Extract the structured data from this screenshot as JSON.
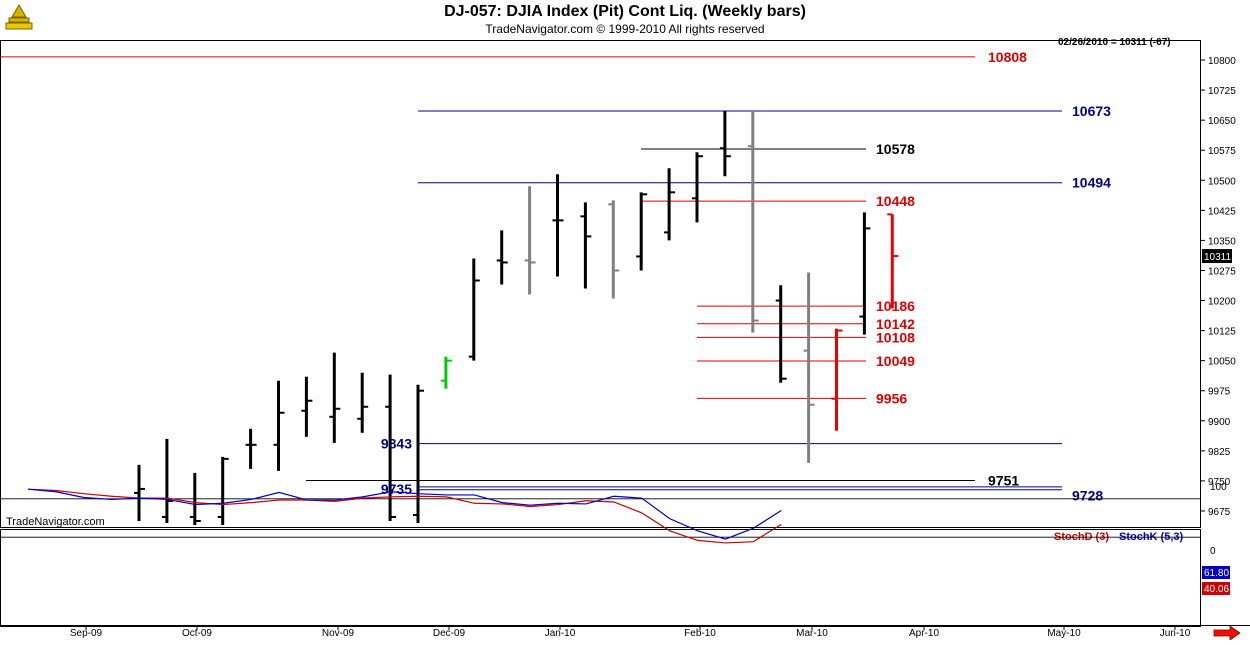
{
  "header": {
    "title": "DJ-057:  DJIA Index (Pit) Cont Liq.  (Weekly bars)",
    "subtitle": "TradeNavigator.com © 1999-2010 All rights reserved",
    "readout": "02/26/2010 = 10311 (-67)"
  },
  "watermark": "TradeNavigator.com",
  "indicator_legend": [
    {
      "text": "StochD (3)",
      "color": "#cc0000"
    },
    {
      "text": "StochK (5,3)",
      "color": "#0000cc"
    }
  ],
  "colors": {
    "up_bar": "#000000",
    "down_bar": "#808080",
    "signal_bar": "#00cc00",
    "red_level": "#dd0000",
    "blue_level": "#00008b",
    "black_level": "#000000",
    "stoch_d": "#cc0000",
    "stoch_k": "#0000cc"
  },
  "chart_data": [
    {
      "type": "bar",
      "subtype": "ohlc",
      "title": "DJ-057:  DJIA Index (Pit) Cont Liq.  (Weekly bars)",
      "ylim": [
        9635,
        10850
      ],
      "y_ticks": [
        10800,
        10725,
        10650,
        10575,
        10500,
        10425,
        10350,
        10275,
        10200,
        10125,
        10050,
        9975,
        9900,
        9825,
        9750,
        9675
      ],
      "x_ticks": [
        "Sep-09",
        "Oct-09",
        "Nov-09",
        "Dec-09",
        "Jan-10",
        "Feb-10",
        "Mar-10",
        "Apr-10",
        "May-10",
        "Jun-10"
      ],
      "grid": false,
      "last_price_label": "10311",
      "bars": [
        {
          "o": 9720,
          "h": 9790,
          "l": 9650,
          "c": 9730,
          "color": "up"
        },
        {
          "o": 9660,
          "h": 9855,
          "l": 9645,
          "c": 9700,
          "color": "up"
        },
        {
          "o": 9660,
          "h": 9770,
          "l": 9640,
          "c": 9650,
          "color": "up"
        },
        {
          "o": 9660,
          "h": 9810,
          "l": 9640,
          "c": 9805,
          "color": "up"
        },
        {
          "o": 9840,
          "h": 9880,
          "l": 9780,
          "c": 9840,
          "color": "up"
        },
        {
          "o": 9840,
          "h": 10000,
          "l": 9775,
          "c": 9920,
          "color": "up"
        },
        {
          "o": 9925,
          "h": 10010,
          "l": 9860,
          "c": 9950,
          "color": "up"
        },
        {
          "o": 9910,
          "h": 10070,
          "l": 9845,
          "c": 9930,
          "color": "up"
        },
        {
          "o": 9905,
          "h": 10020,
          "l": 9870,
          "c": 9935,
          "color": "up"
        },
        {
          "o": 9935,
          "h": 10015,
          "l": 9650,
          "c": 9660,
          "color": "up"
        },
        {
          "o": 9665,
          "h": 9990,
          "l": 9645,
          "c": 9975,
          "color": "up"
        },
        {
          "o": 10000,
          "h": 10060,
          "l": 9980,
          "c": 10050,
          "color": "signal"
        },
        {
          "o": 10060,
          "h": 10305,
          "l": 10050,
          "c": 10250,
          "color": "up"
        },
        {
          "o": 10300,
          "h": 10375,
          "l": 10240,
          "c": 10295,
          "color": "up"
        },
        {
          "o": 10300,
          "h": 10485,
          "l": 10215,
          "c": 10295,
          "color": "down"
        },
        {
          "o": 10400,
          "h": 10515,
          "l": 10260,
          "c": 10400,
          "color": "up"
        },
        {
          "o": 10410,
          "h": 10445,
          "l": 10230,
          "c": 10360,
          "color": "up"
        },
        {
          "o": 10440,
          "h": 10450,
          "l": 10205,
          "c": 10275,
          "color": "down"
        },
        {
          "o": 10310,
          "h": 10470,
          "l": 10275,
          "c": 10465,
          "color": "up"
        },
        {
          "o": 10370,
          "h": 10530,
          "l": 10350,
          "c": 10470,
          "color": "up"
        },
        {
          "o": 10455,
          "h": 10570,
          "l": 10395,
          "c": 10560,
          "color": "up"
        },
        {
          "o": 10580,
          "h": 10673,
          "l": 10510,
          "c": 10560,
          "color": "up"
        },
        {
          "o": 10585,
          "h": 10673,
          "l": 10120,
          "c": 10150,
          "color": "down"
        },
        {
          "o": 10200,
          "h": 10238,
          "l": 9995,
          "c": 10005,
          "color": "up"
        },
        {
          "o": 10075,
          "h": 10270,
          "l": 9795,
          "c": 9940,
          "color": "down"
        },
        {
          "o": 9955,
          "h": 10130,
          "l": 9875,
          "c": 10125,
          "color": "red"
        },
        {
          "o": 10160,
          "h": 10420,
          "l": 10115,
          "c": 10380,
          "color": "up"
        },
        {
          "o": 10415,
          "h": 10415,
          "l": 10180,
          "c": 10311,
          "color": "red"
        }
      ],
      "levels": [
        {
          "value": 10808,
          "label": "10808",
          "color": "red",
          "from": 0,
          "to": 975
        },
        {
          "value": 10673,
          "label": "10673",
          "color": "blue",
          "from": 418,
          "to": 1062
        },
        {
          "value": 10578,
          "label": "10578",
          "color": "black",
          "from": 641,
          "to": 866
        },
        {
          "value": 10494,
          "label": "10494",
          "color": "blue",
          "from": 418,
          "to": 1062
        },
        {
          "value": 10448,
          "label": "10448",
          "color": "red",
          "from": 641,
          "to": 866
        },
        {
          "value": 10186,
          "label": "10186",
          "color": "red",
          "from": 697,
          "to": 866
        },
        {
          "value": 10142,
          "label": "10142",
          "color": "red",
          "from": 697,
          "to": 866
        },
        {
          "value": 10108,
          "label": "10108",
          "color": "red",
          "from": 697,
          "to": 866
        },
        {
          "value": 10049,
          "label": "10049",
          "color": "red",
          "from": 697,
          "to": 866
        },
        {
          "value": 9956,
          "label": "9956",
          "color": "red",
          "from": 697,
          "to": 866
        },
        {
          "value": 9843,
          "label": "9843",
          "color": "blue",
          "from": 418,
          "to": 1062
        },
        {
          "value": 9751,
          "label": "9751",
          "color": "black",
          "from": 306,
          "to": 975
        },
        {
          "value": 9735,
          "label": "9735",
          "color": "blue",
          "from": 418,
          "to": 1062
        },
        {
          "value": 9728,
          "label": "9728",
          "color": "blue",
          "from": 418,
          "to": 1062
        }
      ]
    },
    {
      "type": "line",
      "title": "",
      "ylim": [
        0,
        100
      ],
      "y_ticks": [
        100,
        0
      ],
      "reference_lines": [
        80,
        20
      ],
      "series": [
        {
          "name": "StochD (3)",
          "color": "stoch_d",
          "values": [
            95,
            93,
            88,
            84,
            81,
            81,
            74,
            71,
            74,
            78,
            78,
            76,
            81,
            83,
            84,
            83,
            73,
            72,
            68,
            71,
            77,
            75,
            58,
            30,
            15,
            11,
            13,
            40
          ],
          "last_label": "40.06"
        },
        {
          "name": "StochK (5,3)",
          "color": "stoch_k",
          "values": [
            95,
            91,
            82,
            79,
            81,
            79,
            71,
            73,
            79,
            90,
            78,
            78,
            83,
            91,
            88,
            86,
            86,
            74,
            70,
            73,
            72,
            84,
            81,
            49,
            30,
            17,
            34,
            61.8
          ],
          "last_label": "61.80"
        }
      ]
    }
  ]
}
